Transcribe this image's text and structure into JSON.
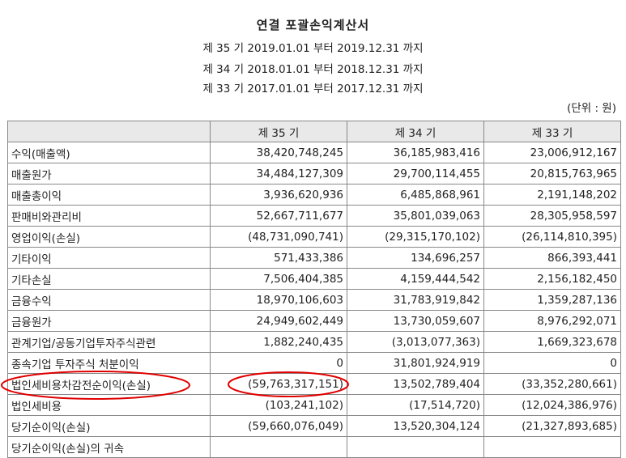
{
  "title": "연결 포괄손익계산서",
  "periods": [
    "제 35 기 2019.01.01 부터 2019.12.31 까지",
    "제 34 기 2018.01.01 부터 2018.12.31 까지",
    "제 33 기 2017.01.01 부터 2017.12.31 까지"
  ],
  "unit": "(단위 : 원)",
  "columns": [
    "",
    "제 35 기",
    "제 34 기",
    "제 33 기"
  ],
  "rows": [
    {
      "label": "수익(매출액)",
      "values": [
        "38,420,748,245",
        "36,185,983,416",
        "23,006,912,167"
      ]
    },
    {
      "label": "매출원가",
      "values": [
        "34,484,127,309",
        "29,700,114,455",
        "20,815,763,965"
      ]
    },
    {
      "label": "매출총이익",
      "values": [
        "3,936,620,936",
        "6,485,868,961",
        "2,191,148,202"
      ]
    },
    {
      "label": "판매비와관리비",
      "values": [
        "52,667,711,677",
        "35,801,039,063",
        "28,305,958,597"
      ]
    },
    {
      "label": "영업이익(손실)",
      "values": [
        "(48,731,090,741)",
        "(29,315,170,102)",
        "(26,114,810,395)"
      ]
    },
    {
      "label": "기타이익",
      "values": [
        "571,433,386",
        "134,696,257",
        "866,393,441"
      ]
    },
    {
      "label": "기타손실",
      "values": [
        "7,506,404,385",
        "4,159,444,542",
        "2,156,182,450"
      ]
    },
    {
      "label": "금융수익",
      "values": [
        "18,970,106,603",
        "31,783,919,842",
        "1,359,287,136"
      ]
    },
    {
      "label": "금융원가",
      "values": [
        "24,949,602,449",
        "13,730,059,607",
        "8,976,292,071"
      ]
    },
    {
      "label": "관계기업/공동기업투자주식관련",
      "values": [
        "1,882,240,435",
        "(3,013,077,363)",
        "1,669,323,678"
      ]
    },
    {
      "label": "종속기업 투자주식 처분이익",
      "values": [
        "0",
        "31,801,924,919",
        "0"
      ]
    },
    {
      "label": "법인세비용차감전순이익(손실)",
      "values": [
        "(59,763,317,151)",
        "13,502,789,404",
        "(33,352,280,661)"
      ]
    },
    {
      "label": "법인세비용",
      "values": [
        "(103,241,102)",
        "(17,514,720)",
        "(12,024,386,976)"
      ]
    },
    {
      "label": "당기순이익(손실)",
      "values": [
        "(59,660,076,049)",
        "13,520,304,124",
        "(21,327,893,685)"
      ]
    },
    {
      "label": "당기순이익(손실)의 귀속",
      "values": [
        "",
        "",
        ""
      ]
    }
  ],
  "annotation_color": "#e00000"
}
